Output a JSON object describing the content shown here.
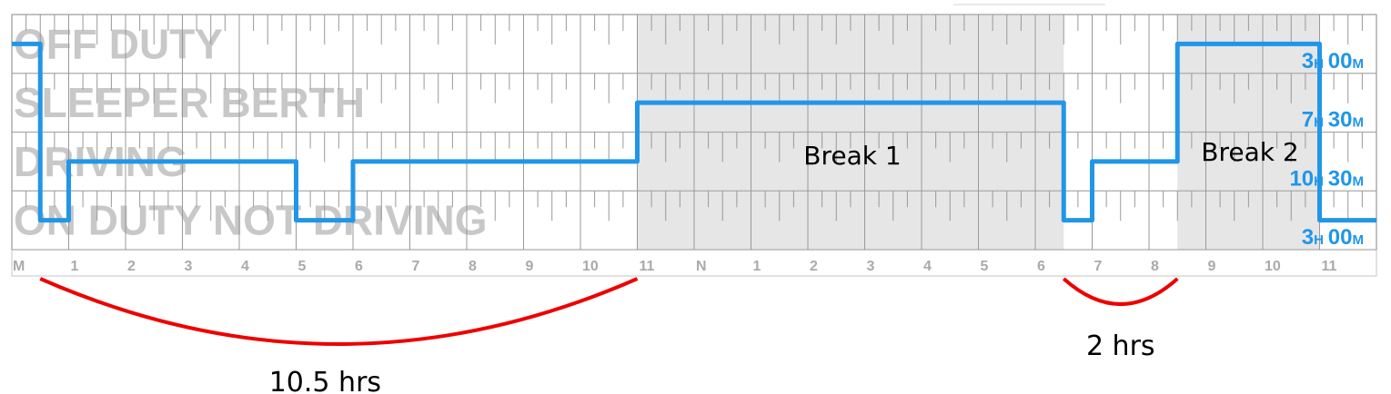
{
  "statuses": [
    "OFF DUTY",
    "SLEEPER BERTH",
    "DRIVING",
    "ON DUTY NOT DRIVING"
  ],
  "hour_labels": [
    "M",
    "1",
    "2",
    "3",
    "4",
    "5",
    "6",
    "7",
    "8",
    "9",
    "10",
    "11",
    "N",
    "1",
    "2",
    "3",
    "4",
    "5",
    "6",
    "7",
    "8",
    "9",
    "10",
    "11"
  ],
  "totals": [
    {
      "h": "3",
      "m": "00"
    },
    {
      "h": "7",
      "m": "30"
    },
    {
      "h": "10",
      "m": "30"
    },
    {
      "h": "3",
      "m": "00"
    }
  ],
  "unit_h": "H",
  "unit_m": "M",
  "segments": [
    {
      "status": 0,
      "start": 0,
      "end": 0.5
    },
    {
      "status": 3,
      "start": 0.5,
      "end": 1
    },
    {
      "status": 2,
      "start": 1,
      "end": 5
    },
    {
      "status": 3,
      "start": 5,
      "end": 6
    },
    {
      "status": 2,
      "start": 6,
      "end": 11
    },
    {
      "status": 1,
      "start": 11,
      "end": 18.5
    },
    {
      "status": 3,
      "start": 18.5,
      "end": 19
    },
    {
      "status": 2,
      "start": 19,
      "end": 20.5
    },
    {
      "status": 0,
      "start": 20.5,
      "end": 23
    },
    {
      "status": 3,
      "start": 23,
      "end": 24
    }
  ],
  "breaks": [
    {
      "label": "Break 1",
      "start": 11,
      "end": 18.5
    },
    {
      "label": "Break 2",
      "start": 20.5,
      "end": 23
    }
  ],
  "annotations": [
    {
      "label": "10.5 hrs",
      "start": 0.5,
      "end": 11
    },
    {
      "label": "2 hrs",
      "start": 18.5,
      "end": 20.5
    }
  ],
  "colors": {
    "line": "#2196e8",
    "shade": "#e6e6e6",
    "grid": "#999999",
    "arc": "#ee0000"
  }
}
